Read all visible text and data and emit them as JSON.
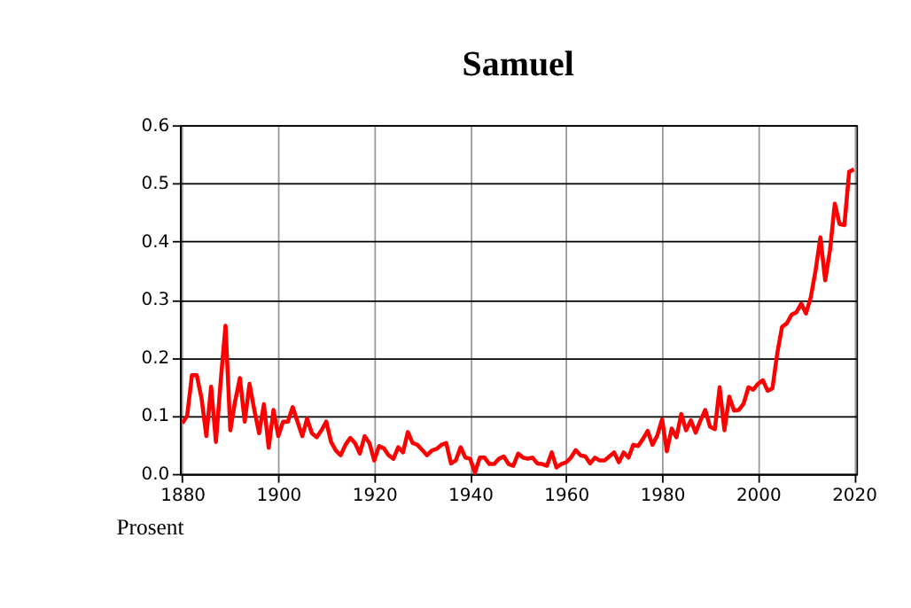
{
  "chart_data": {
    "type": "line",
    "title": "Samuel",
    "ylabel": "Prosent",
    "x": [
      1880,
      1881,
      1882,
      1883,
      1884,
      1885,
      1886,
      1887,
      1888,
      1889,
      1890,
      1891,
      1892,
      1893,
      1894,
      1895,
      1896,
      1897,
      1898,
      1899,
      1900,
      1901,
      1902,
      1903,
      1904,
      1905,
      1906,
      1907,
      1908,
      1909,
      1910,
      1911,
      1912,
      1913,
      1914,
      1915,
      1916,
      1917,
      1918,
      1919,
      1920,
      1921,
      1922,
      1923,
      1924,
      1925,
      1926,
      1927,
      1928,
      1929,
      1930,
      1931,
      1932,
      1933,
      1934,
      1935,
      1936,
      1937,
      1938,
      1939,
      1940,
      1941,
      1942,
      1943,
      1944,
      1945,
      1946,
      1947,
      1948,
      1949,
      1950,
      1951,
      1952,
      1953,
      1954,
      1955,
      1956,
      1957,
      1958,
      1959,
      1960,
      1961,
      1962,
      1963,
      1964,
      1965,
      1966,
      1967,
      1968,
      1969,
      1970,
      1971,
      1972,
      1973,
      1974,
      1975,
      1976,
      1977,
      1978,
      1979,
      1980,
      1981,
      1982,
      1983,
      1984,
      1985,
      1986,
      1987,
      1988,
      1989,
      1990,
      1991,
      1992,
      1993,
      1994,
      1995,
      1996,
      1997,
      1998,
      1999,
      2000,
      2001,
      2002,
      2003,
      2004,
      2005,
      2006,
      2007,
      2008,
      2009,
      2010,
      2011,
      2012,
      2013,
      2014,
      2015,
      2016,
      2017,
      2018,
      2019,
      2020
    ],
    "series": [
      {
        "color": "#ff0000",
        "values": [
          0.087,
          0.1,
          0.17,
          0.17,
          0.13,
          0.065,
          0.15,
          0.055,
          0.16,
          0.255,
          0.075,
          0.125,
          0.165,
          0.09,
          0.155,
          0.11,
          0.07,
          0.12,
          0.045,
          0.11,
          0.065,
          0.09,
          0.09,
          0.115,
          0.09,
          0.065,
          0.095,
          0.07,
          0.063,
          0.075,
          0.09,
          0.055,
          0.04,
          0.032,
          0.05,
          0.062,
          0.053,
          0.035,
          0.065,
          0.053,
          0.023,
          0.048,
          0.044,
          0.032,
          0.026,
          0.046,
          0.037,
          0.072,
          0.053,
          0.05,
          0.041,
          0.032,
          0.04,
          0.043,
          0.05,
          0.053,
          0.018,
          0.023,
          0.046,
          0.028,
          0.026,
          0.002,
          0.028,
          0.028,
          0.017,
          0.017,
          0.026,
          0.03,
          0.017,
          0.014,
          0.035,
          0.028,
          0.026,
          0.028,
          0.018,
          0.017,
          0.014,
          0.037,
          0.011,
          0.017,
          0.02,
          0.028,
          0.041,
          0.032,
          0.03,
          0.018,
          0.028,
          0.023,
          0.023,
          0.03,
          0.037,
          0.02,
          0.037,
          0.028,
          0.05,
          0.048,
          0.06,
          0.074,
          0.05,
          0.066,
          0.094,
          0.039,
          0.078,
          0.063,
          0.103,
          0.075,
          0.092,
          0.071,
          0.092,
          0.11,
          0.081,
          0.077,
          0.149,
          0.075,
          0.133,
          0.109,
          0.11,
          0.121,
          0.149,
          0.145,
          0.155,
          0.161,
          0.143,
          0.147,
          0.207,
          0.253,
          0.259,
          0.274,
          0.278,
          0.293,
          0.276,
          0.304,
          0.35,
          0.407,
          0.333,
          0.385,
          0.465,
          0.43,
          0.428,
          0.52,
          0.524
        ]
      }
    ],
    "xlim": [
      1879.5,
      2020.5
    ],
    "xticks": [
      1880,
      1900,
      1920,
      1940,
      1960,
      1980,
      2000,
      2020
    ],
    "ylim": [
      0,
      0.6
    ],
    "yticks": [
      {
        "value": 0,
        "label": "0.0"
      },
      {
        "value": 0.1,
        "label": "0.1"
      },
      {
        "value": 0.2,
        "label": "0.2"
      },
      {
        "value": 0.3,
        "label": "0.3"
      },
      {
        "value": 0.4,
        "label": "0.4"
      },
      {
        "value": 0.5,
        "label": "0.5"
      },
      {
        "value": 0.6,
        "label": "0.6"
      }
    ],
    "grid": true,
    "legend": false,
    "marker": "none",
    "line_style": "solid"
  }
}
